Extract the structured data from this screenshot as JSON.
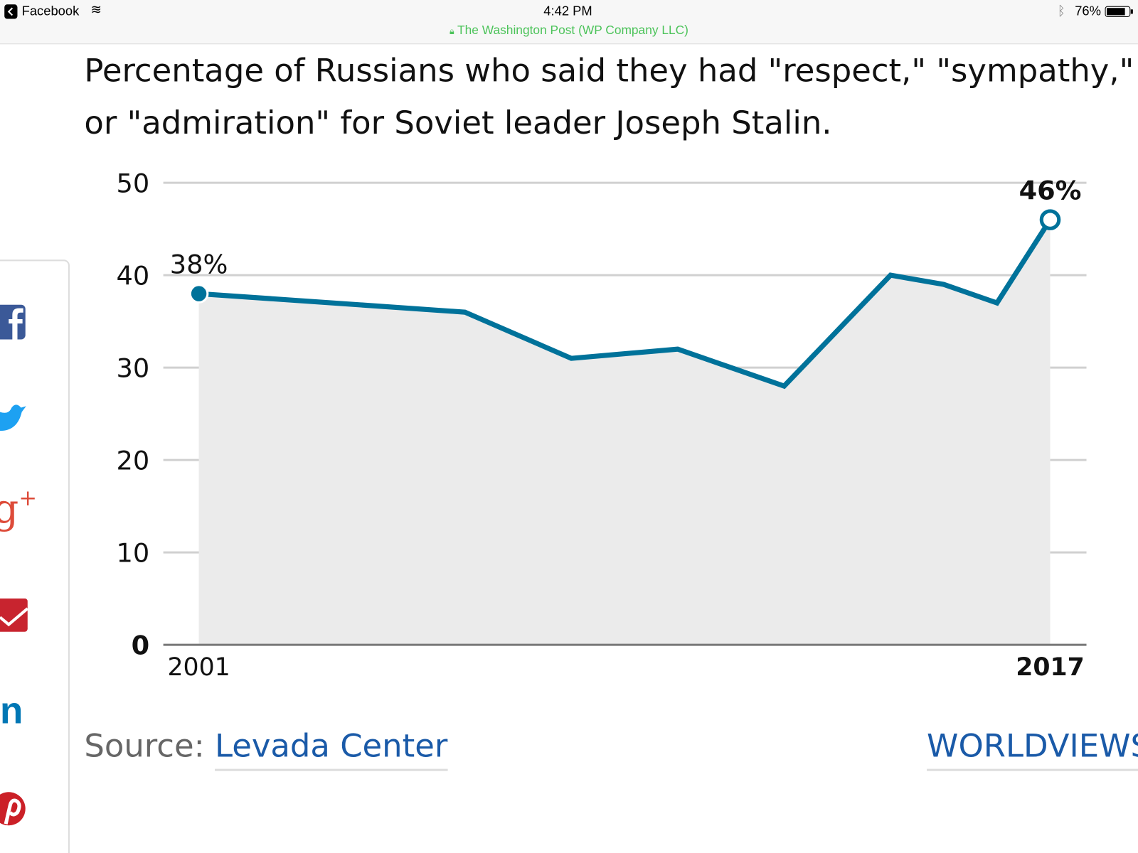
{
  "status_bar": {
    "back_app": "Facebook",
    "time": "4:42 PM",
    "battery": "76%",
    "site": "The Washington Post (WP Company LLC)"
  },
  "title": "Percentage of Russians who said they had \"respect,\" \"sympathy,\" or \"admiration\" for Soviet leader Joseph Stalin.",
  "title_lines": [
    "Percentage of Russians who said they had \"respect,\" \"sympathy,\"",
    "or \"admiration\" for Soviet leader Joseph Stalin."
  ],
  "share_icons": [
    "facebook-icon",
    "twitter-icon",
    "google-plus-icon",
    "email-icon",
    "linkedin-icon",
    "pinterest-icon"
  ],
  "source": {
    "label": "Source:",
    "link": "Levada Center"
  },
  "brand": "WORLDVIEWS",
  "colors": {
    "line": "#00729a",
    "area": "#ebebeb",
    "link": "#1a5aa8"
  },
  "chart_data": {
    "type": "area",
    "x": [
      2001,
      2006,
      2008,
      2010,
      2012,
      2014,
      2015,
      2016,
      2017
    ],
    "series": [
      {
        "values": [
          38,
          36,
          31,
          32,
          28,
          40,
          39,
          37,
          46
        ]
      }
    ],
    "ylim": [
      0,
      50
    ],
    "yticks": [
      "0",
      "10",
      "20",
      "30",
      "40",
      "50"
    ],
    "xtick_labels": [
      "2001",
      "2017"
    ],
    "annotations": [
      "38%",
      "46%"
    ],
    "grid": true
  }
}
